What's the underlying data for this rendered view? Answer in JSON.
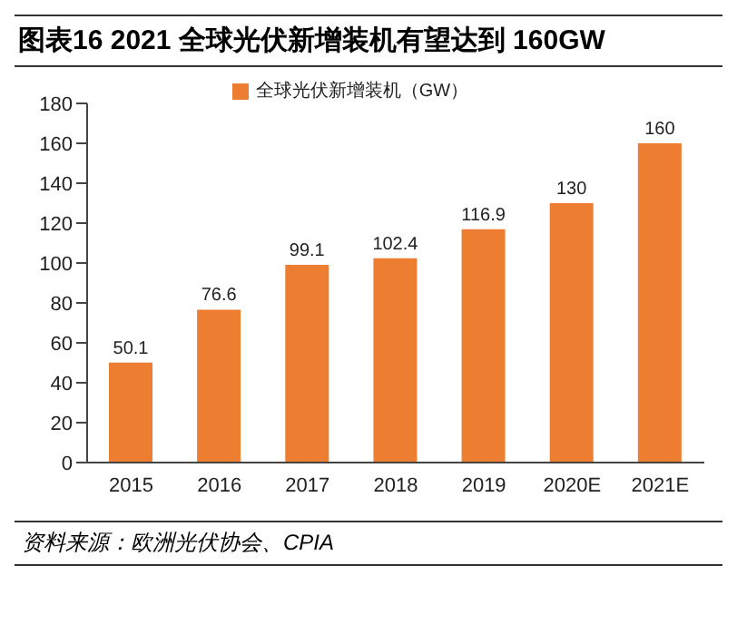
{
  "chart_data": {
    "type": "bar",
    "title": "图表16 2021 全球光伏新增装机有望达到 160GW",
    "categories": [
      "2015",
      "2016",
      "2017",
      "2018",
      "2019",
      "2020E",
      "2021E"
    ],
    "series": [
      {
        "name": "全球光伏新增装机（GW）",
        "color": "#ed7d31",
        "values": [
          50.1,
          76.6,
          99.1,
          102.4,
          116.9,
          130,
          160
        ]
      }
    ],
    "ylim": [
      0,
      180
    ],
    "yticks": [
      0,
      20,
      40,
      60,
      80,
      100,
      120,
      140,
      160,
      180
    ],
    "data_labels": true,
    "legend": "top",
    "grid": false,
    "annotations": [
      "资料来源：欧洲光伏协会、CPIA"
    ]
  }
}
